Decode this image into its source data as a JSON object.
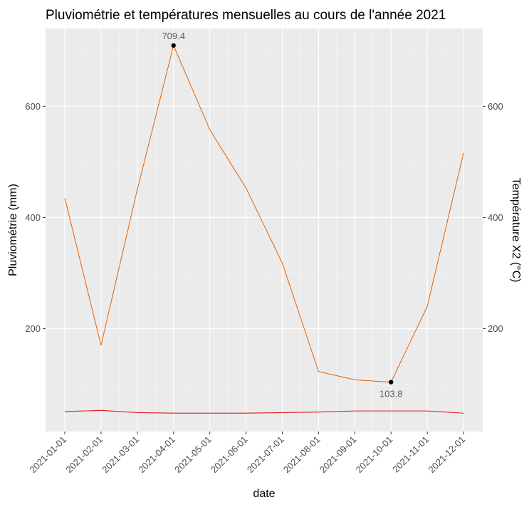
{
  "chart_data": {
    "type": "line",
    "title": "Pluviométrie et températures mensuelles au cours de l'année 2021",
    "xlabel": "date",
    "ylabel": "Pluviométrie (mm)",
    "y2label": "Température X2 (°C)",
    "x": [
      "2021-01-01",
      "2021-02-01",
      "2021-03-01",
      "2021-04-01",
      "2021-05-01",
      "2021-06-01",
      "2021-07-01",
      "2021-08-01",
      "2021-09-01",
      "2021-10-01",
      "2021-11-01",
      "2021-12-01"
    ],
    "yticks": [
      200,
      400,
      600
    ],
    "y2ticks": [
      200,
      400,
      600
    ],
    "ylim": [
      15,
      740
    ],
    "grid": true,
    "series": [
      {
        "axis": "left",
        "color": "#e66100",
        "values": [
          435,
          170,
          450,
          709.4,
          558,
          453,
          318,
          123,
          108,
          103.8,
          240,
          516
        ]
      },
      {
        "axis": "right",
        "color": "#e31a1c",
        "values": [
          51,
          53,
          49,
          48,
          48,
          48,
          49,
          50,
          52,
          52,
          52,
          48
        ]
      }
    ],
    "annotations": [
      {
        "x": "2021-04-01",
        "y": 709.4,
        "label": "709.4",
        "position": "above"
      },
      {
        "x": "2021-10-01",
        "y": 103.8,
        "label": "103.8",
        "position": "below"
      }
    ]
  }
}
